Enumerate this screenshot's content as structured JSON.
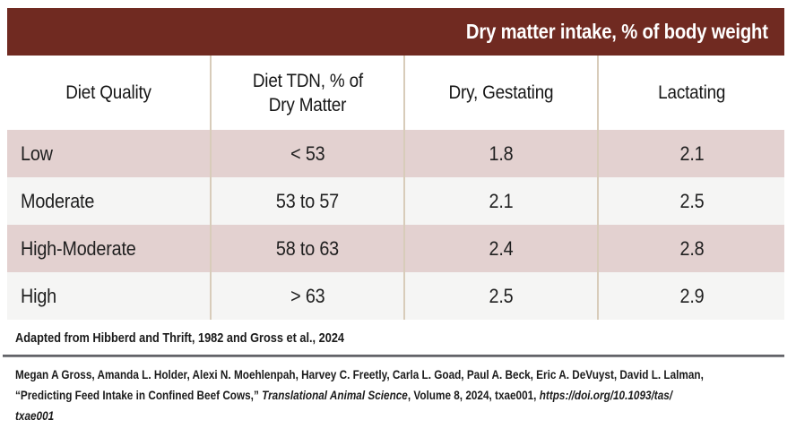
{
  "banner": {
    "title": "Dry matter intake, % of body weight"
  },
  "table": {
    "columns": [
      {
        "label": "Diet Quality",
        "lines": [
          "Diet Quality"
        ]
      },
      {
        "label": "Diet TDN, % of Dry Matter",
        "lines": [
          "Diet TDN, % of",
          "Dry Matter"
        ]
      },
      {
        "label": "Dry, Gestating",
        "lines": [
          "Dry, Gestating"
        ]
      },
      {
        "label": "Lactating",
        "lines": [
          "Lactating"
        ]
      }
    ],
    "rows": [
      {
        "quality": "Low",
        "tdn": "< 53",
        "dry_gestating": "1.8",
        "lactating": "2.1"
      },
      {
        "quality": "Moderate",
        "tdn": "53 to 57",
        "dry_gestating": "2.1",
        "lactating": "2.5"
      },
      {
        "quality": "High-Moderate",
        "tdn": "58 to 63",
        "dry_gestating": "2.4",
        "lactating": "2.8"
      },
      {
        "quality": "High",
        "tdn": "> 63",
        "dry_gestating": "2.5",
        "lactating": "2.9"
      }
    ]
  },
  "footer": {
    "adapted_note": "Adapted from Hibberd and Thrift, 1982 and Gross et al., 2024",
    "citation": {
      "line1": "Megan A Gross, Amanda L. Holder, Alexi N. Moehlenpah, Harvey C. Freetly, Carla L. Goad, Paul A. Beck, Eric A. DeVuyst, David L. Lalman,",
      "line2_title": "“Predicting Feed Intake in Confined Beef Cows,” ",
      "line2_journal": "Translational Animal Science",
      "line2_middle": ", Volume 8, 2024, txae001, ",
      "line2_doi": "https://doi.org/10.1093/tas/",
      "line3_doi": "txae001"
    }
  },
  "colors": {
    "banner_bg": "#702a21",
    "banner_text": "#ffffff",
    "row_pink": "#e3d1d0",
    "row_gray": "#f5f5f4",
    "column_line": "#d8ccba",
    "divider": "#515257",
    "body_text": "#1f1f1f"
  }
}
